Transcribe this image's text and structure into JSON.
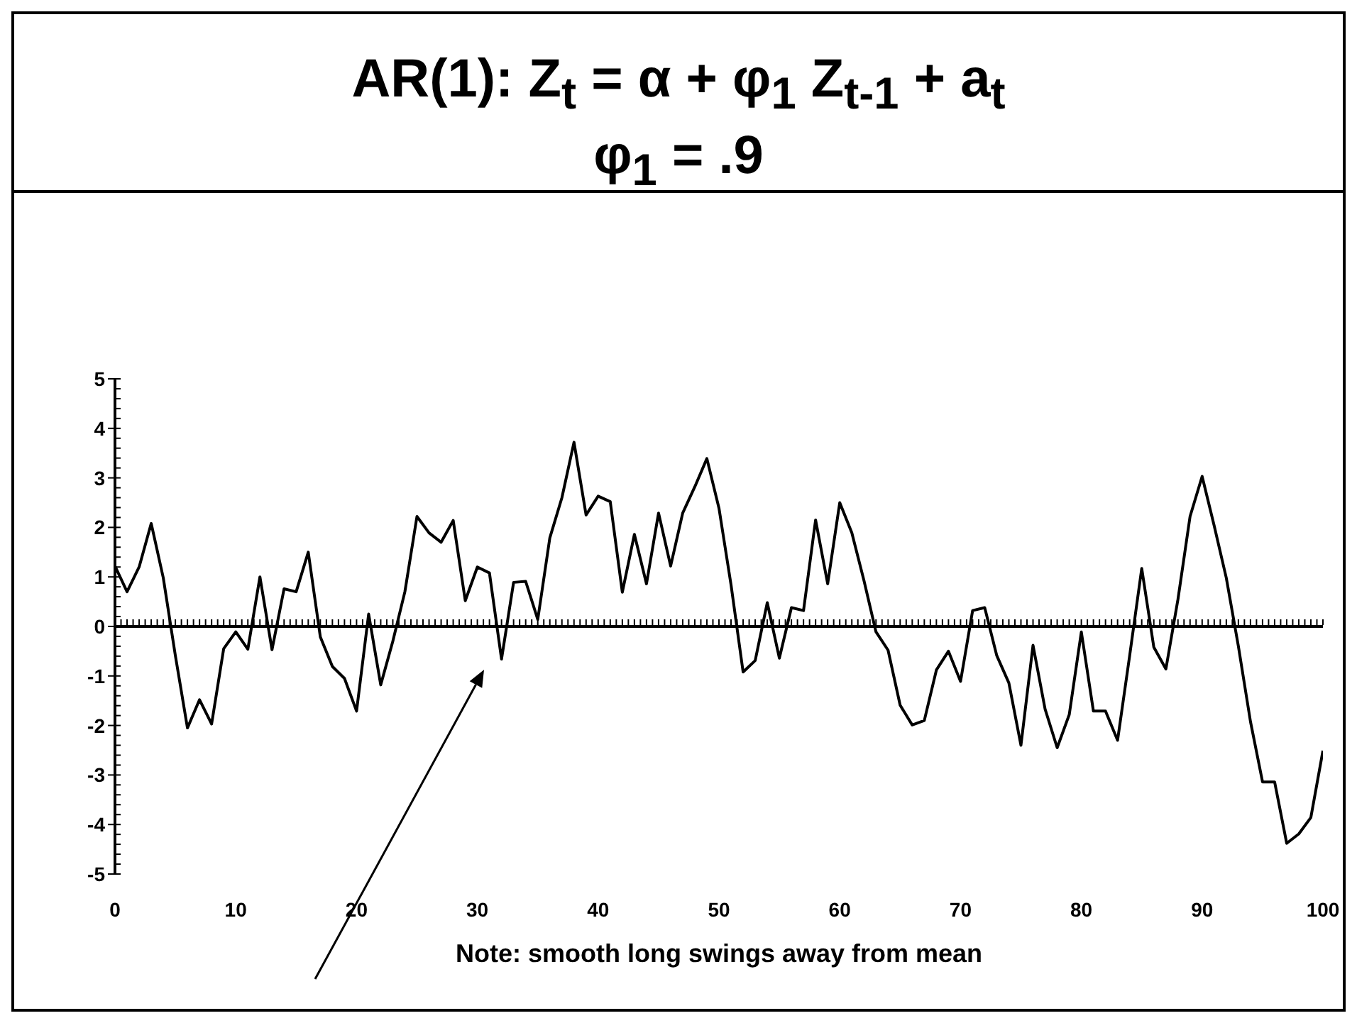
{
  "chart_data": {
    "type": "line",
    "title": "AR(1):  Z$_{t}$ = α + φ$_{1}$ Z$_{t-1}$ + a$_{t}$",
    "subtitle": "φ$_{1}$ = .9",
    "x": [
      0,
      1,
      2,
      3,
      4,
      5,
      6,
      7,
      8,
      9,
      10,
      11,
      12,
      13,
      14,
      15,
      16,
      17,
      18,
      19,
      20,
      21,
      22,
      23,
      24,
      25,
      26,
      27,
      28,
      29,
      30,
      31,
      32,
      33,
      34,
      35,
      36,
      37,
      38,
      39,
      40,
      41,
      42,
      43,
      44,
      45,
      46,
      47,
      48,
      49,
      50,
      51,
      52,
      53,
      54,
      55,
      56,
      57,
      58,
      59,
      60,
      61,
      62,
      63,
      64,
      65,
      66,
      67,
      68,
      69,
      70,
      71,
      72,
      73,
      74,
      75,
      76,
      77,
      78,
      79,
      80,
      81,
      82,
      83,
      84,
      85,
      86,
      87,
      88,
      89,
      90,
      91,
      92,
      93,
      94,
      95,
      96,
      97,
      98,
      99,
      100
    ],
    "series": [
      {
        "color": "#000000",
        "values": [
          1.22,
          0.7,
          1.2,
          2.08,
          0.98,
          -0.59,
          -2.05,
          -1.48,
          -1.97,
          -0.45,
          -0.11,
          -0.46,
          1.0,
          -0.47,
          0.76,
          0.7,
          1.5,
          -0.21,
          -0.81,
          -1.05,
          -1.71,
          0.25,
          -1.18,
          -0.3,
          0.7,
          2.22,
          1.89,
          1.7,
          2.14,
          0.52,
          1.2,
          1.08,
          -0.66,
          0.89,
          0.91,
          0.14,
          1.79,
          2.6,
          3.72,
          2.25,
          2.63,
          2.52,
          0.69,
          1.86,
          0.86,
          2.29,
          1.22,
          2.29,
          2.82,
          3.39,
          2.39,
          0.84,
          -0.92,
          -0.69,
          0.48,
          -0.64,
          0.38,
          0.32,
          2.15,
          0.86,
          2.5,
          1.89,
          0.93,
          -0.11,
          -0.48,
          -1.59,
          -1.99,
          -1.9,
          -0.88,
          -0.5,
          -1.11,
          0.32,
          0.38,
          -0.59,
          -1.14,
          -2.4,
          -0.38,
          -1.67,
          -2.45,
          -1.78,
          -0.11,
          -1.71,
          -1.71,
          -2.3,
          -0.59,
          1.17,
          -0.42,
          -0.86,
          0.55,
          2.22,
          3.03,
          2.03,
          0.98,
          -0.4,
          -1.92,
          -3.14,
          -3.14,
          -4.38,
          -4.19,
          -3.86,
          -2.51
        ]
      }
    ],
    "xlim": [
      0,
      100
    ],
    "xticks": [
      0,
      10,
      20,
      30,
      40,
      50,
      60,
      70,
      80,
      90,
      100
    ],
    "ylim": [
      -5,
      5
    ],
    "yticks": [
      -5,
      -4,
      -3,
      -2,
      -1,
      0,
      1,
      2,
      3,
      4,
      5
    ],
    "marker": "none",
    "line_style": "solid",
    "ref_lines": [
      {
        "axis": "y",
        "value": 0,
        "color": "#000000"
      }
    ],
    "annotations": [
      "Note: smooth long swings away from mean"
    ]
  }
}
